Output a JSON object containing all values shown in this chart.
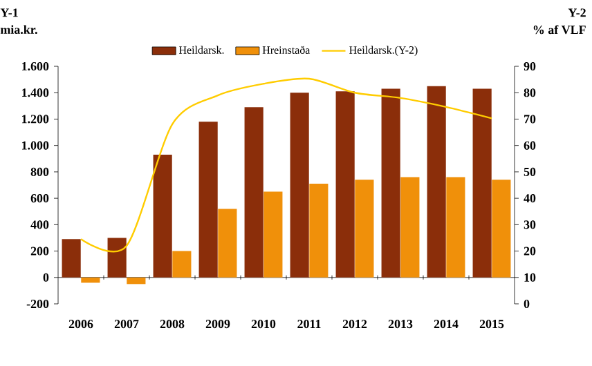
{
  "chart_data": {
    "type": "bar",
    "ylabel": "mia.kr.",
    "y2label": "% af VLF",
    "annotations": [
      "Y-1",
      "Y-2"
    ],
    "legend": "top",
    "categories": [
      "2006",
      "2007",
      "2008",
      "2009",
      "2010",
      "2011",
      "2012",
      "2013",
      "2014",
      "2015"
    ],
    "series": [
      {
        "name": "Heildarsk.",
        "color": "#8b2e0a",
        "values": [
          290,
          300,
          930,
          1180,
          1290,
          1400,
          1410,
          1430,
          1450,
          1430
        ]
      },
      {
        "name": "Hreinstaða",
        "color": "#f0900a",
        "values": [
          -40,
          -50,
          200,
          520,
          650,
          710,
          740,
          760,
          760,
          740
        ]
      },
      {
        "name": "Heildarsk.(Y-2)",
        "color": "#ffcc00",
        "type": "line",
        "axis": "y2",
        "values": [
          24.5,
          22,
          68,
          79,
          83.4,
          85.3,
          80,
          78,
          74.6,
          70.3
        ]
      }
    ],
    "ylim": [
      -200,
      1600
    ],
    "yticks": [
      -200,
      0,
      200,
      400,
      600,
      800,
      {
        "value": 1000,
        "label": "1.000"
      },
      {
        "value": 1200,
        "label": "1.200"
      },
      {
        "value": 1400,
        "label": "1.400"
      },
      {
        "value": 1600,
        "label": "1.600"
      }
    ],
    "y2lim": [
      0,
      90
    ],
    "y2ticks": [
      0,
      10,
      20,
      30,
      40,
      50,
      60,
      70,
      80,
      90
    ]
  }
}
